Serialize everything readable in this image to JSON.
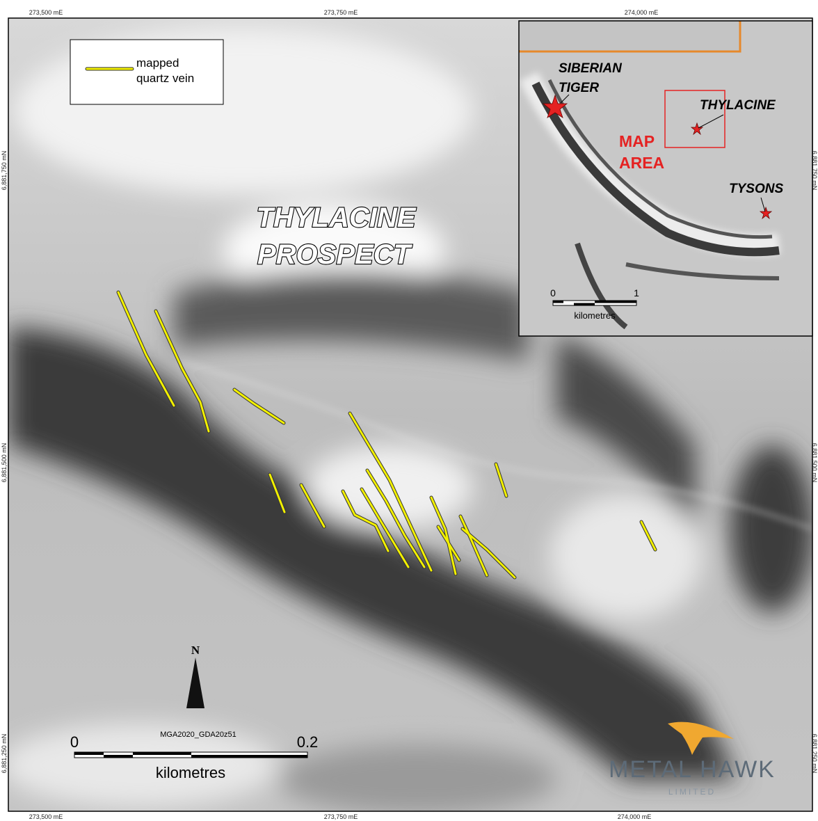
{
  "grid_labels": {
    "top": [
      "273,500 mE",
      "273,750 mE",
      "274,000 mE"
    ],
    "bottom": [
      "273,500 mE",
      "273,750 mE",
      "274,000 mE"
    ],
    "left": [
      "6,881,750 mN",
      "6,881,500 mN",
      "6,881,250 mN"
    ],
    "right": [
      "6,881,750 mN",
      "6,881,500 mN",
      "6,881,250 mN"
    ]
  },
  "legend": {
    "lines": [
      "mapped",
      "quartz vein"
    ]
  },
  "title": [
    "THYLACINE",
    "PROSPECT"
  ],
  "inset": {
    "labels": {
      "siberian_tiger": [
        "SIBERIAN",
        "TIGER"
      ],
      "thylacine": "THYLACINE",
      "map_area": [
        "MAP",
        "AREA"
      ],
      "tysons": "TYSONS"
    },
    "scale": {
      "start": "0",
      "end": "1",
      "unit": "kilometres"
    }
  },
  "scale_bar": {
    "start": "0",
    "end": "0.2",
    "unit": "kilometres",
    "projection": "MGA2020_GDA20z51"
  },
  "north_arrow": "N",
  "logo": {
    "name": "METAL HAWK",
    "subtitle": "LIMITED"
  }
}
